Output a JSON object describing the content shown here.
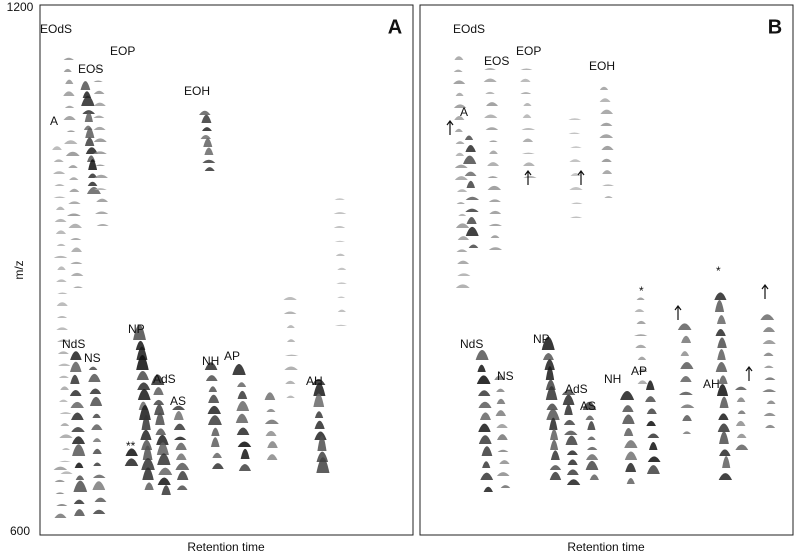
{
  "axis": {
    "y_label": "m/z",
    "y_max": "1200",
    "y_min": "600",
    "x_label": "Retention time"
  },
  "panels": [
    {
      "letter": "A",
      "labels": [
        "EOdS",
        "EOS",
        "EOP",
        "EOH",
        "A",
        "NdS",
        "NS",
        "NP",
        "AdS",
        "AS",
        "NH",
        "AP",
        "AH",
        "**"
      ]
    },
    {
      "letter": "B",
      "labels": [
        "EOdS",
        "EOS",
        "EOP",
        "EOH",
        "A",
        "NdS",
        "NS",
        "NP",
        "AdS",
        "AS",
        "NH",
        "AP",
        "AH",
        "*",
        "*"
      ]
    }
  ]
}
